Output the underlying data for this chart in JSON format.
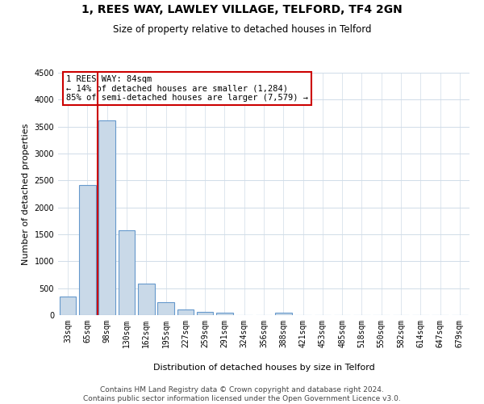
{
  "title": "1, REES WAY, LAWLEY VILLAGE, TELFORD, TF4 2GN",
  "subtitle": "Size of property relative to detached houses in Telford",
  "xlabel": "Distribution of detached houses by size in Telford",
  "ylabel": "Number of detached properties",
  "categories": [
    "33sqm",
    "65sqm",
    "98sqm",
    "130sqm",
    "162sqm",
    "195sqm",
    "227sqm",
    "259sqm",
    "291sqm",
    "324sqm",
    "356sqm",
    "388sqm",
    "421sqm",
    "453sqm",
    "485sqm",
    "518sqm",
    "550sqm",
    "582sqm",
    "614sqm",
    "647sqm",
    "679sqm"
  ],
  "values": [
    350,
    2420,
    3620,
    1580,
    590,
    240,
    100,
    55,
    50,
    0,
    0,
    50,
    0,
    0,
    0,
    0,
    0,
    0,
    0,
    0,
    0
  ],
  "bar_color": "#c9d9e8",
  "bar_edge_color": "#6699cc",
  "vline_color": "#cc0000",
  "vline_x_index": 1.5,
  "annotation_text": "1 REES WAY: 84sqm\n← 14% of detached houses are smaller (1,284)\n85% of semi-detached houses are larger (7,579) →",
  "annotation_box_color": "#ffffff",
  "annotation_box_edge": "#cc0000",
  "ylim": [
    0,
    4500
  ],
  "yticks": [
    0,
    500,
    1000,
    1500,
    2000,
    2500,
    3000,
    3500,
    4000,
    4500
  ],
  "footer": "Contains HM Land Registry data © Crown copyright and database right 2024.\nContains public sector information licensed under the Open Government Licence v3.0.",
  "bg_color": "#ffffff",
  "grid_color": "#d0dce8",
  "title_fontsize": 10,
  "subtitle_fontsize": 8.5,
  "label_fontsize": 8,
  "tick_fontsize": 7,
  "footer_fontsize": 6.5,
  "annotation_fontsize": 7.5
}
